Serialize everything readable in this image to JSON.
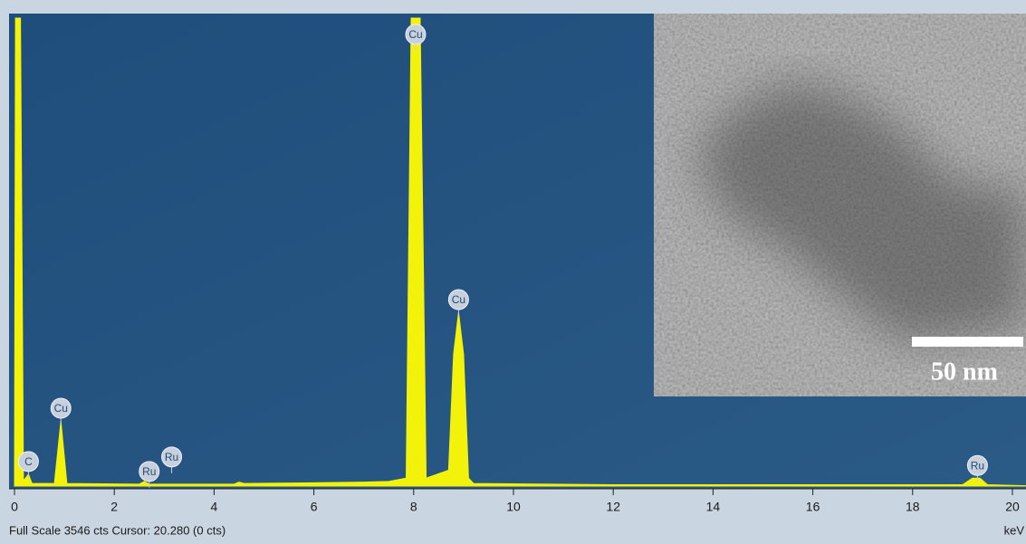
{
  "chart_data": {
    "type": "area",
    "color": "#f2f20a",
    "x": [
      0,
      0.02,
      0.12,
      0.18,
      0.28,
      0.35,
      0.8,
      0.93,
      1.05,
      2.5,
      2.6,
      2.7,
      3.0,
      4.4,
      4.5,
      4.6,
      6.0,
      7.0,
      7.5,
      7.85,
      7.95,
      8.13,
      8.25,
      8.7,
      8.8,
      8.9,
      9.0,
      9.1,
      9.2,
      12,
      19.0,
      19.2,
      19.35,
      19.5,
      20.5
    ],
    "values": [
      0,
      3546,
      3546,
      40,
      90,
      20,
      20,
      494,
      20,
      15,
      35,
      15,
      15,
      15,
      30,
      20,
      25,
      30,
      35,
      60,
      3546,
      3546,
      60,
      120,
      1000,
      1317,
      1000,
      60,
      20,
      10,
      10,
      60,
      60,
      10,
      0
    ],
    "xlim": [
      0,
      20.5
    ],
    "ylim": [
      0,
      3546
    ],
    "xticks": [
      0,
      2,
      4,
      6,
      8,
      10,
      12,
      14,
      16,
      18,
      20
    ],
    "x_label": "keV",
    "status": "Full Scale 3546 cts Cursor: 20.280  (0 cts)",
    "peak_labels": [
      {
        "text": "C",
        "x": 0.28
      },
      {
        "text": "Cu",
        "x": 0.93
      },
      {
        "text": "Ru",
        "x": 2.7
      },
      {
        "text": "Ru",
        "x": 3.15
      },
      {
        "text": "Cu",
        "x": 8.04
      },
      {
        "text": "Cu",
        "x": 8.9
      },
      {
        "text": "Ru",
        "x": 19.3
      }
    ],
    "inset": {
      "scale_bar": "50 nm"
    }
  }
}
